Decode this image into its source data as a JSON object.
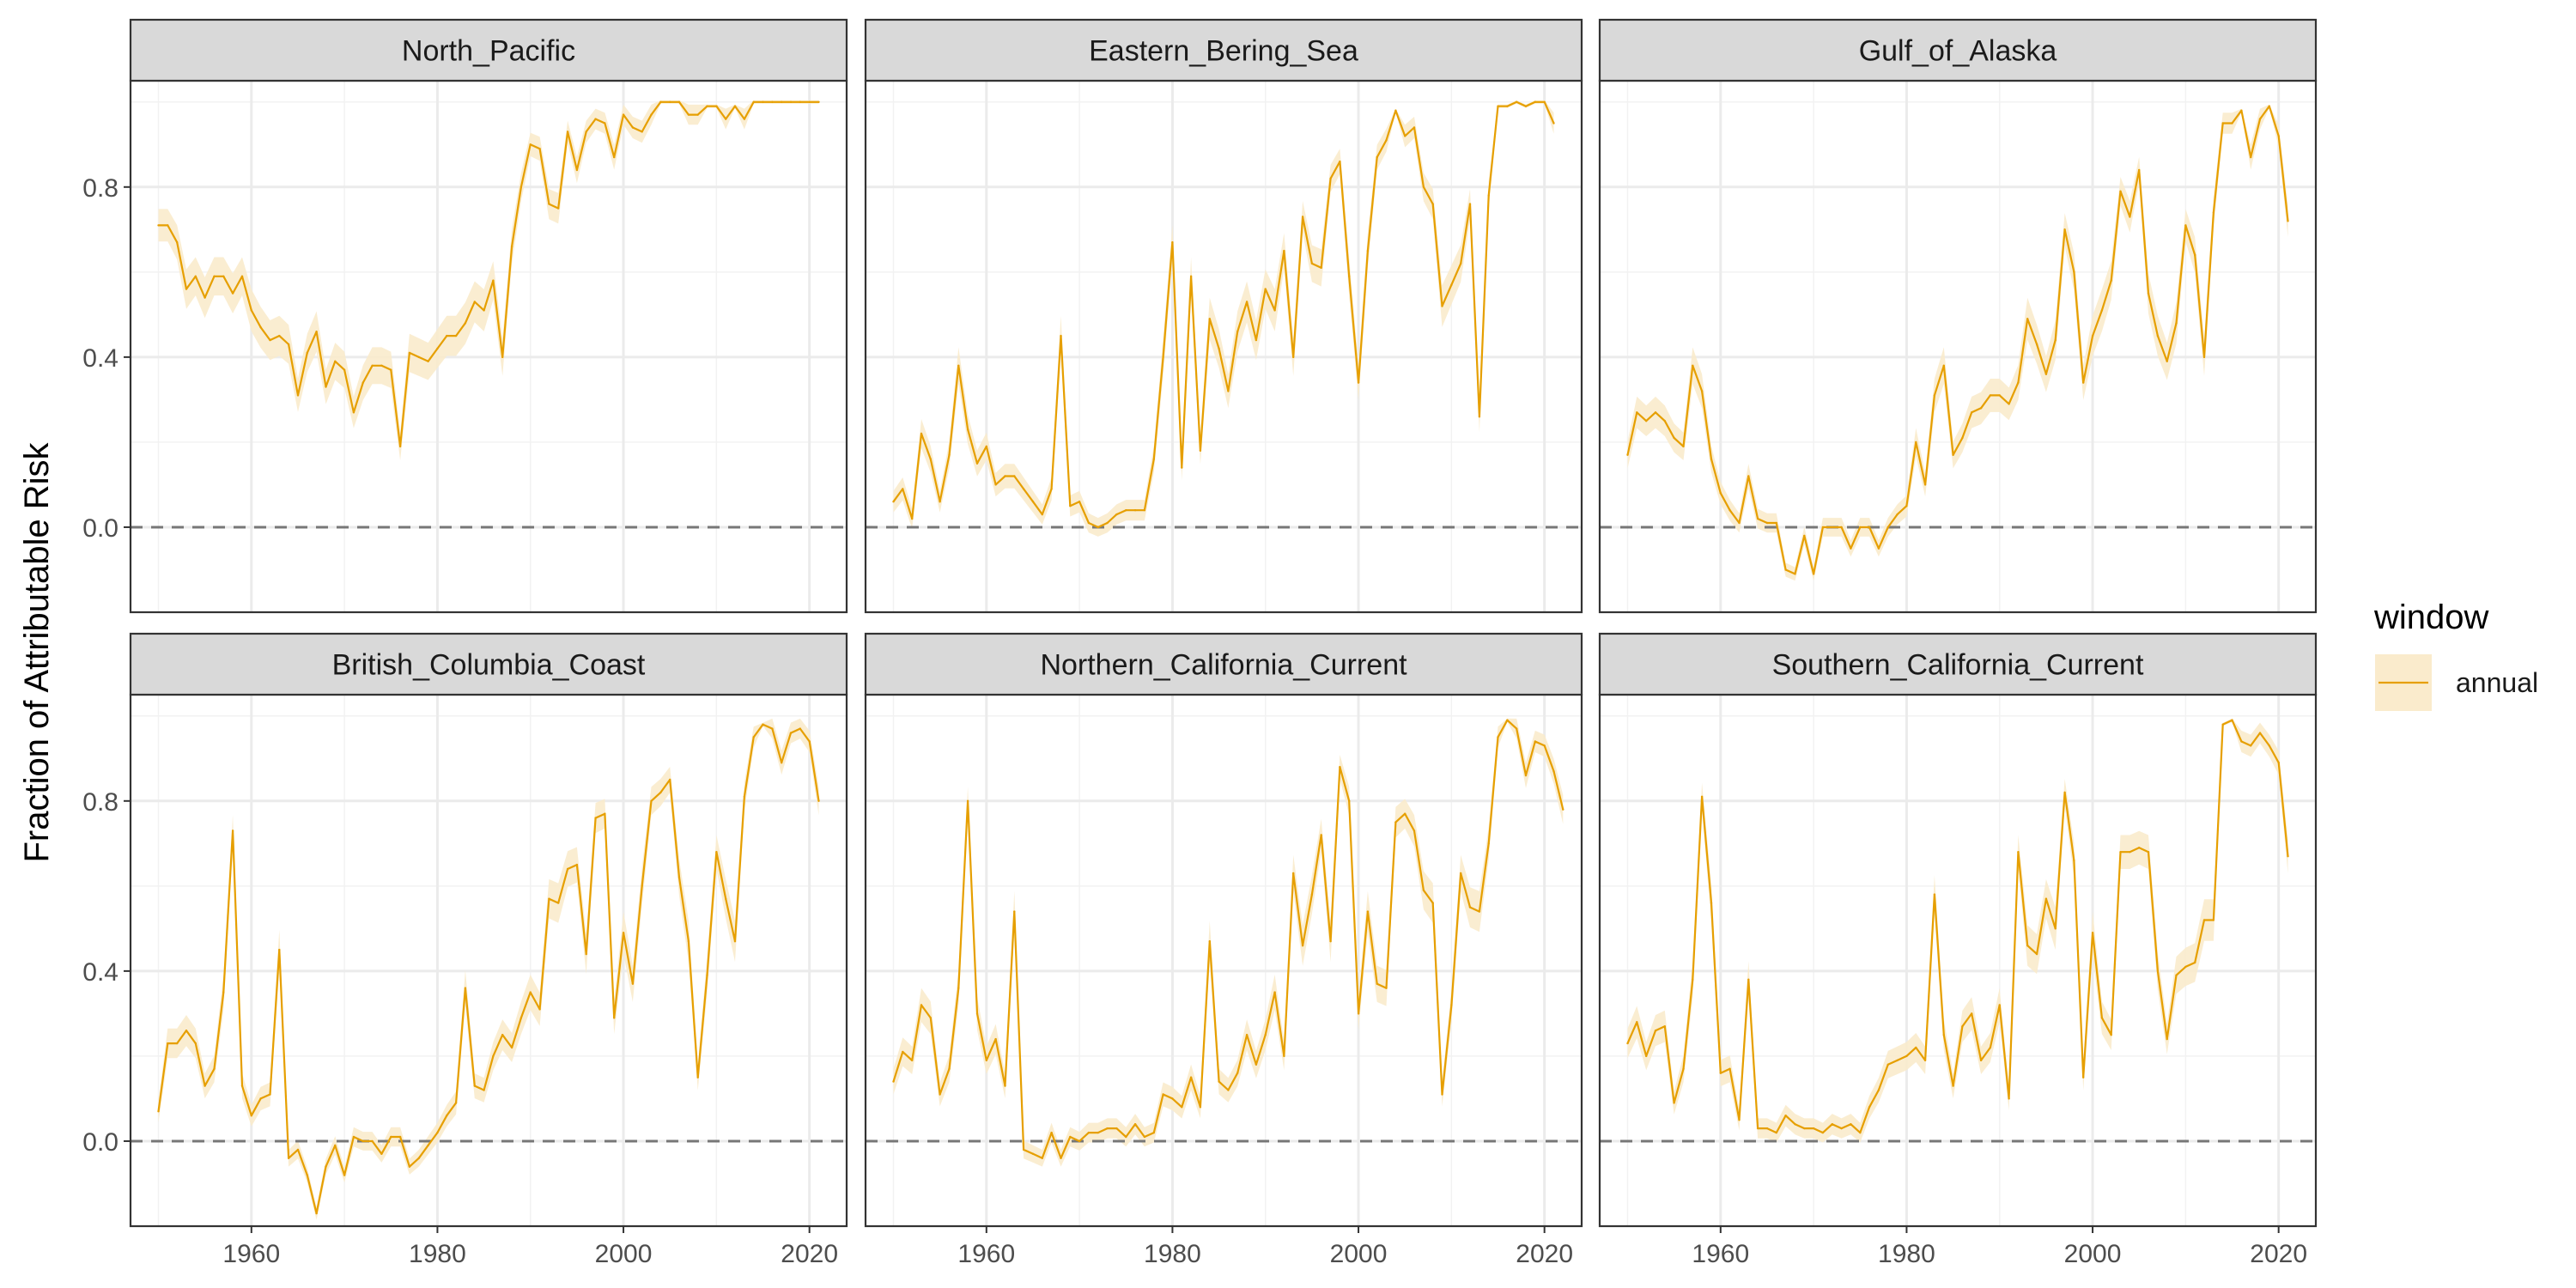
{
  "chart_data": {
    "type": "line",
    "ylabel": "Fraction of Attributable Risk",
    "xlabel": "",
    "xlim": [
      1947,
      2024
    ],
    "ylim": [
      -0.2,
      1.05
    ],
    "x_ticks": [
      1960,
      1980,
      2000,
      2020
    ],
    "x_tick_labels": [
      "1960",
      "1980",
      "2000",
      "2020"
    ],
    "y_ticks": [
      0.0,
      0.4,
      0.8
    ],
    "y_tick_labels": [
      "0.0",
      "0.4",
      "0.8"
    ],
    "reference_line": {
      "y": 0.0,
      "style": "dashed"
    },
    "grid": true,
    "legend": {
      "title": "window",
      "entries": [
        "annual"
      ],
      "position": "right"
    },
    "colors": {
      "line": "#E69F00",
      "ribbon": "#FAEBCC",
      "strip_bg": "#D9D9D9",
      "panel_border": "#333333",
      "grid_major": "#EBEBEB",
      "grid_minor": "#F2F2F2",
      "ref_line": "#777777"
    },
    "panels": [
      {
        "name": "North_Pacific",
        "start_year": 1950,
        "values": [
          0.71,
          0.71,
          0.67,
          0.56,
          0.59,
          0.54,
          0.59,
          0.59,
          0.55,
          0.59,
          0.51,
          0.47,
          0.44,
          0.45,
          0.43,
          0.31,
          0.41,
          0.46,
          0.33,
          0.39,
          0.37,
          0.27,
          0.34,
          0.38,
          0.38,
          0.37,
          0.19,
          0.41,
          0.4,
          0.39,
          0.42,
          0.45,
          0.45,
          0.48,
          0.53,
          0.51,
          0.58,
          0.4,
          0.66,
          0.8,
          0.9,
          0.89,
          0.76,
          0.75,
          0.93,
          0.84,
          0.93,
          0.96,
          0.95,
          0.87,
          0.97,
          0.94,
          0.93,
          0.97,
          1.0,
          1.0,
          1.0,
          0.97,
          0.97,
          0.99,
          0.99,
          0.96,
          0.99,
          0.96,
          1.0,
          1.0,
          1.0,
          1.0,
          1.0,
          1.0,
          1.0,
          1.0
        ]
      },
      {
        "name": "Eastern_Bering_Sea",
        "start_year": 1950,
        "values": [
          0.06,
          0.09,
          0.02,
          0.22,
          0.16,
          0.06,
          0.17,
          0.38,
          0.23,
          0.15,
          0.19,
          0.1,
          0.12,
          0.12,
          0.09,
          0.06,
          0.03,
          0.09,
          0.45,
          0.05,
          0.06,
          0.01,
          0.0,
          0.01,
          0.03,
          0.04,
          0.04,
          0.04,
          0.16,
          0.4,
          0.67,
          0.14,
          0.59,
          0.18,
          0.49,
          0.42,
          0.32,
          0.46,
          0.53,
          0.44,
          0.56,
          0.51,
          0.65,
          0.4,
          0.73,
          0.62,
          0.61,
          0.82,
          0.86,
          0.59,
          0.34,
          0.65,
          0.87,
          0.91,
          0.98,
          0.92,
          0.94,
          0.8,
          0.76,
          0.52,
          0.57,
          0.62,
          0.76,
          0.26,
          0.78,
          0.99,
          0.99,
          1.0,
          0.99,
          1.0,
          1.0,
          0.95
        ]
      },
      {
        "name": "Gulf_of_Alaska",
        "start_year": 1950,
        "values": [
          0.17,
          0.27,
          0.25,
          0.27,
          0.25,
          0.21,
          0.19,
          0.38,
          0.32,
          0.16,
          0.08,
          0.04,
          0.01,
          0.12,
          0.02,
          0.01,
          0.01,
          -0.1,
          -0.11,
          -0.02,
          -0.11,
          0.0,
          0.0,
          0.0,
          -0.05,
          0.0,
          0.0,
          -0.05,
          0.0,
          0.03,
          0.05,
          0.2,
          0.1,
          0.31,
          0.38,
          0.17,
          0.21,
          0.27,
          0.28,
          0.31,
          0.31,
          0.29,
          0.34,
          0.49,
          0.43,
          0.36,
          0.44,
          0.7,
          0.6,
          0.34,
          0.45,
          0.51,
          0.58,
          0.79,
          0.73,
          0.84,
          0.55,
          0.45,
          0.39,
          0.48,
          0.71,
          0.64,
          0.4,
          0.74,
          0.95,
          0.95,
          0.98,
          0.87,
          0.96,
          0.99,
          0.92,
          0.72
        ]
      },
      {
        "name": "British_Columbia_Coast",
        "start_year": 1950,
        "values": [
          0.07,
          0.23,
          0.23,
          0.26,
          0.23,
          0.13,
          0.17,
          0.35,
          0.73,
          0.13,
          0.06,
          0.1,
          0.11,
          0.45,
          -0.04,
          -0.02,
          -0.08,
          -0.17,
          -0.06,
          -0.01,
          -0.08,
          0.01,
          0.0,
          0.0,
          -0.03,
          0.01,
          0.01,
          -0.06,
          -0.04,
          -0.01,
          0.02,
          0.06,
          0.09,
          0.36,
          0.13,
          0.12,
          0.2,
          0.25,
          0.22,
          0.29,
          0.35,
          0.31,
          0.57,
          0.56,
          0.64,
          0.65,
          0.44,
          0.76,
          0.77,
          0.29,
          0.49,
          0.37,
          0.6,
          0.8,
          0.82,
          0.85,
          0.62,
          0.47,
          0.15,
          0.39,
          0.68,
          0.57,
          0.47,
          0.81,
          0.95,
          0.98,
          0.97,
          0.89,
          0.96,
          0.97,
          0.94,
          0.8
        ]
      },
      {
        "name": "Northern_California_Current",
        "start_year": 1950,
        "values": [
          0.14,
          0.21,
          0.19,
          0.32,
          0.29,
          0.11,
          0.17,
          0.36,
          0.8,
          0.3,
          0.19,
          0.24,
          0.13,
          0.54,
          -0.02,
          -0.03,
          -0.04,
          0.02,
          -0.04,
          0.01,
          0.0,
          0.02,
          0.02,
          0.03,
          0.03,
          0.01,
          0.04,
          0.01,
          0.02,
          0.11,
          0.1,
          0.08,
          0.15,
          0.08,
          0.47,
          0.14,
          0.12,
          0.16,
          0.25,
          0.18,
          0.25,
          0.35,
          0.2,
          0.63,
          0.46,
          0.58,
          0.72,
          0.47,
          0.88,
          0.8,
          0.3,
          0.54,
          0.37,
          0.36,
          0.75,
          0.77,
          0.73,
          0.59,
          0.56,
          0.11,
          0.32,
          0.63,
          0.55,
          0.54,
          0.7,
          0.95,
          0.99,
          0.97,
          0.86,
          0.94,
          0.93,
          0.87,
          0.78
        ]
      },
      {
        "name": "Southern_California_Current",
        "start_year": 1950,
        "values": [
          0.23,
          0.28,
          0.2,
          0.26,
          0.27,
          0.09,
          0.17,
          0.38,
          0.81,
          0.56,
          0.16,
          0.17,
          0.05,
          0.38,
          0.03,
          0.03,
          0.02,
          0.06,
          0.04,
          0.03,
          0.03,
          0.02,
          0.04,
          0.03,
          0.04,
          0.02,
          0.08,
          0.12,
          0.18,
          0.19,
          0.2,
          0.22,
          0.19,
          0.58,
          0.25,
          0.13,
          0.27,
          0.3,
          0.19,
          0.22,
          0.32,
          0.1,
          0.68,
          0.46,
          0.44,
          0.57,
          0.5,
          0.82,
          0.66,
          0.15,
          0.49,
          0.29,
          0.25,
          0.68,
          0.68,
          0.69,
          0.68,
          0.4,
          0.24,
          0.39,
          0.41,
          0.42,
          0.52,
          0.52,
          0.98,
          0.99,
          0.94,
          0.93,
          0.96,
          0.93,
          0.89,
          0.67
        ]
      }
    ]
  }
}
